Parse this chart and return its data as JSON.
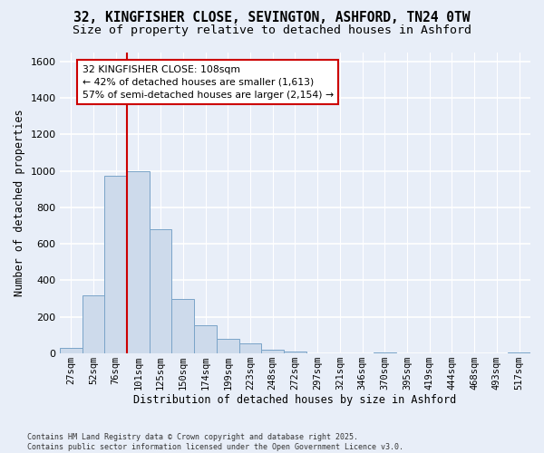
{
  "title_line1": "32, KINGFISHER CLOSE, SEVINGTON, ASHFORD, TN24 0TW",
  "title_line2": "Size of property relative to detached houses in Ashford",
  "xlabel": "Distribution of detached houses by size in Ashford",
  "ylabel": "Number of detached properties",
  "footnote": "Contains HM Land Registry data © Crown copyright and database right 2025.\nContains public sector information licensed under the Open Government Licence v3.0.",
  "bar_labels": [
    "27sqm",
    "52sqm",
    "76sqm",
    "101sqm",
    "125sqm",
    "150sqm",
    "174sqm",
    "199sqm",
    "223sqm",
    "248sqm",
    "272sqm",
    "297sqm",
    "321sqm",
    "346sqm",
    "370sqm",
    "395sqm",
    "419sqm",
    "444sqm",
    "468sqm",
    "493sqm",
    "517sqm"
  ],
  "bar_values": [
    30,
    320,
    975,
    1000,
    680,
    300,
    155,
    80,
    55,
    20,
    10,
    0,
    0,
    0,
    5,
    0,
    0,
    0,
    0,
    0,
    5
  ],
  "bar_color": "#cddaeb",
  "bar_edgecolor": "#7aa4c8",
  "vline_x": 2.5,
  "vline_color": "#cc0000",
  "annotation_text": "32 KINGFISHER CLOSE: 108sqm\n← 42% of detached houses are smaller (1,613)\n57% of semi-detached houses are larger (2,154) →",
  "annotation_box_color": "#cc0000",
  "ylim": [
    0,
    1650
  ],
  "yticks": [
    0,
    200,
    400,
    600,
    800,
    1000,
    1200,
    1400,
    1600
  ],
  "bg_color": "#e8eef8",
  "grid_color": "#ffffff",
  "title_fontsize": 10.5,
  "subtitle_fontsize": 9.5,
  "axis_label_fontsize": 8.5,
  "tick_fontsize": 7.5,
  "ylabel_fontsize": 8.5
}
